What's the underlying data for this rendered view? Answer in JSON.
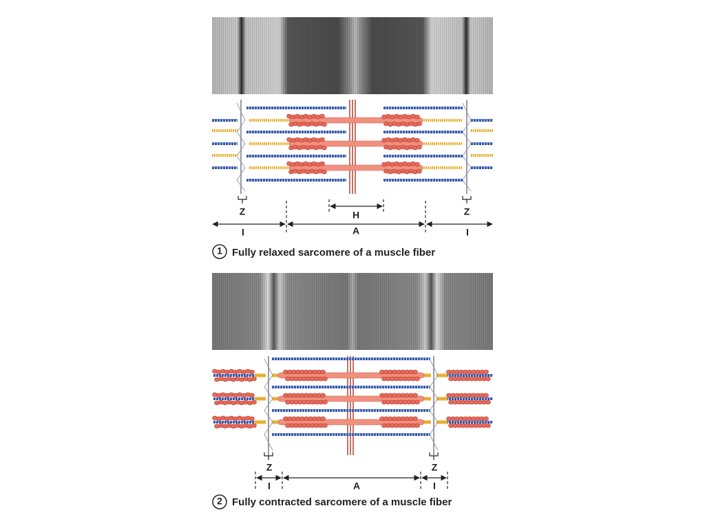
{
  "panels": [
    {
      "number": "1",
      "caption": "Fully relaxed sarcomere of a muscle fiber",
      "labels": {
        "z_left": "Z",
        "z_right": "Z",
        "h": "H",
        "a": "A",
        "i_left": "I",
        "i_right": "I"
      }
    },
    {
      "number": "2",
      "caption": "Fully contracted sarcomere of a muscle fiber",
      "labels": {
        "z_left": "Z",
        "z_right": "Z",
        "a": "A",
        "i_left": "I",
        "i_right": "I"
      }
    }
  ]
}
